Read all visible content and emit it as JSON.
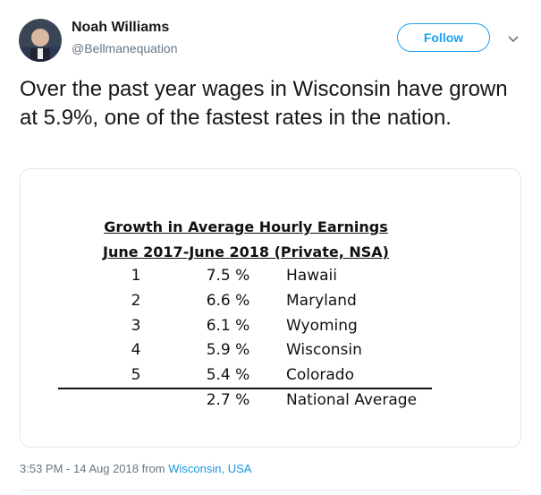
{
  "author": {
    "name": "Noah Williams",
    "handle": "@Bellmanequation"
  },
  "follow_button": "Follow",
  "tweet_text": "Over the past year wages in Wisconsin have grown at 5.9%, one of the fastest rates in the nation.",
  "image_table": {
    "title": "Growth in Average Hourly Earnings",
    "subtitle": "June 2017-June 2018 (Private, NSA)",
    "rows": [
      [
        "1",
        "7.5 %",
        "Hawaii"
      ],
      [
        "2",
        "6.6 %",
        "Maryland"
      ],
      [
        "3",
        "6.1 %",
        "Wyoming"
      ],
      [
        "4",
        "5.9 %",
        "Wisconsin"
      ],
      [
        "5",
        "5.4 %",
        "Colorado"
      ]
    ],
    "total_row": [
      "2.7 %",
      "National Average"
    ]
  },
  "footer": {
    "timestamp": "3:53 PM - 14 Aug 2018 from",
    "location": "Wisconsin, USA"
  }
}
